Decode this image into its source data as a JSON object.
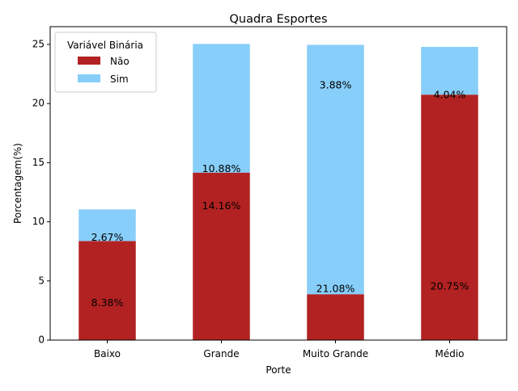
{
  "chart_data": {
    "type": "bar",
    "stacked": true,
    "title": "Quadra Esportes",
    "xlabel": "Porte",
    "ylabel": "Porcentagem(%)",
    "ylim": [
      0,
      26.5
    ],
    "yticks": [
      0,
      5,
      10,
      15,
      20,
      25
    ],
    "categories": [
      "Baixo",
      "Grande",
      "Muito Grande",
      "Médio"
    ],
    "series": [
      {
        "name": "Não",
        "color": "#b22222",
        "values": [
          8.38,
          14.16,
          3.88,
          20.75
        ]
      },
      {
        "name": "Sim",
        "color": "#87cefa",
        "values": [
          2.67,
          10.88,
          21.08,
          4.04
        ]
      }
    ],
    "data_labels": [
      {
        "text": "8.38%",
        "category": "Baixo",
        "y": 3.1
      },
      {
        "text": "2.67%",
        "category": "Baixo",
        "y": 8.65
      },
      {
        "text": "14.16%",
        "category": "Grande",
        "y": 11.3
      },
      {
        "text": "10.88%",
        "category": "Grande",
        "y": 14.45
      },
      {
        "text": "3.88%",
        "category": "Muito Grande",
        "y": 21.5
      },
      {
        "text": "21.08%",
        "category": "Muito Grande",
        "y": 4.3
      },
      {
        "text": "20.75%",
        "category": "Médio",
        "y": 4.5
      },
      {
        "text": "4.04%",
        "category": "Médio",
        "y": 20.7
      }
    ],
    "legend": {
      "title": "Variável Binária",
      "position": "top-left",
      "entries": [
        "Não",
        "Sim"
      ]
    },
    "grid": false
  }
}
